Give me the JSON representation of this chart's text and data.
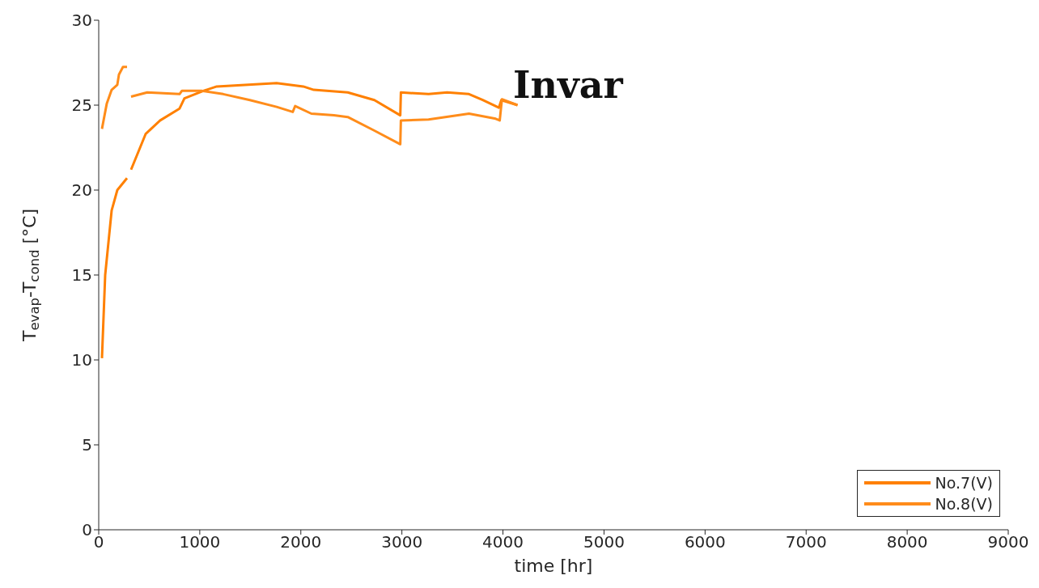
{
  "chart_data": {
    "type": "line",
    "xlabel": "time [hr]",
    "ylabel": "T$_{evap}$-T$_{cond}$ [°C]",
    "annotations": [
      "Invar"
    ],
    "xlim": [
      0,
      9000
    ],
    "xticks": [
      0,
      1000,
      2000,
      3000,
      4000,
      5000,
      6000,
      7000,
      8000,
      9000
    ],
    "ylim": [
      0,
      30
    ],
    "yticks": [
      0,
      5,
      10,
      15,
      20,
      25,
      30
    ],
    "grid": false,
    "legend": "bottom right",
    "line_style": "solid",
    "marker": "none",
    "series": [
      {
        "name": "No.7(V)",
        "color": "#ff8000",
        "x": [
          32,
          64,
          128,
          184,
          280,
          300,
          320,
          464,
          608,
          800,
          848,
          1040,
          1168,
          1760,
          2024,
          2128,
          2464,
          2728,
          2984,
          2990,
          3264,
          3448,
          3664,
          3800,
          3960,
          3984,
          4144
        ],
        "values": [
          10.1,
          15.0,
          18.8,
          20.0,
          20.7,
          null,
          21.2,
          23.3,
          24.1,
          24.8,
          25.4,
          25.85,
          26.1,
          26.3,
          26.1,
          25.9,
          25.75,
          25.3,
          24.4,
          25.75,
          25.65,
          25.75,
          25.65,
          25.3,
          24.85,
          25.3,
          25.0
        ]
      },
      {
        "name": "No.8(V)",
        "color": "#ff8c1a",
        "x": [
          32,
          80,
          128,
          184,
          200,
          240,
          280,
          300,
          320,
          480,
          800,
          824,
          1016,
          1232,
          1496,
          1760,
          1920,
          1944,
          2104,
          2328,
          2464,
          2728,
          2984,
          2990,
          3264,
          3664,
          3928,
          3968,
          3990,
          4144
        ],
        "values": [
          23.6,
          25.1,
          25.9,
          26.2,
          26.8,
          27.25,
          27.25,
          null,
          25.5,
          25.75,
          25.65,
          25.85,
          25.85,
          25.65,
          25.3,
          24.9,
          24.6,
          24.95,
          24.5,
          24.4,
          24.3,
          23.5,
          22.7,
          24.1,
          24.15,
          24.5,
          24.2,
          24.1,
          25.35,
          25.0
        ]
      }
    ]
  }
}
